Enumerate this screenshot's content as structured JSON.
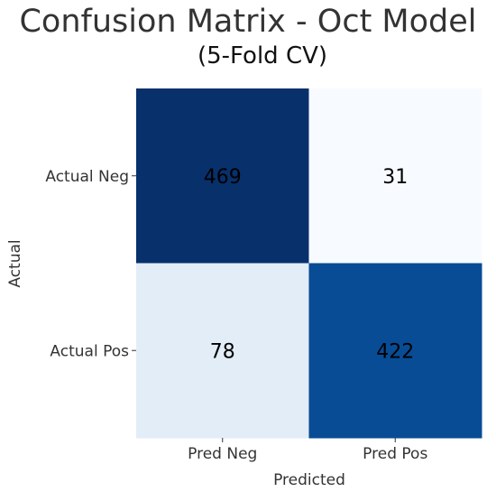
{
  "chart_data": {
    "type": "heatmap",
    "title": "Confusion Matrix - Oct Model",
    "subtitle": "(5-Fold CV)",
    "xlabel": "Predicted",
    "ylabel": "Actual",
    "x_categories": [
      "Pred Neg",
      "Pred Pos"
    ],
    "y_categories": [
      "Actual Neg",
      "Actual Pos"
    ],
    "values": [
      [
        469,
        31
      ],
      [
        78,
        422
      ]
    ],
    "colormap": "Blues",
    "colors": {
      "high": "#08306b",
      "low": "#f7fbff",
      "annotation_on_dark": "#000000",
      "annotation_on_light": "#000000"
    },
    "grid": false,
    "legend": "none"
  }
}
